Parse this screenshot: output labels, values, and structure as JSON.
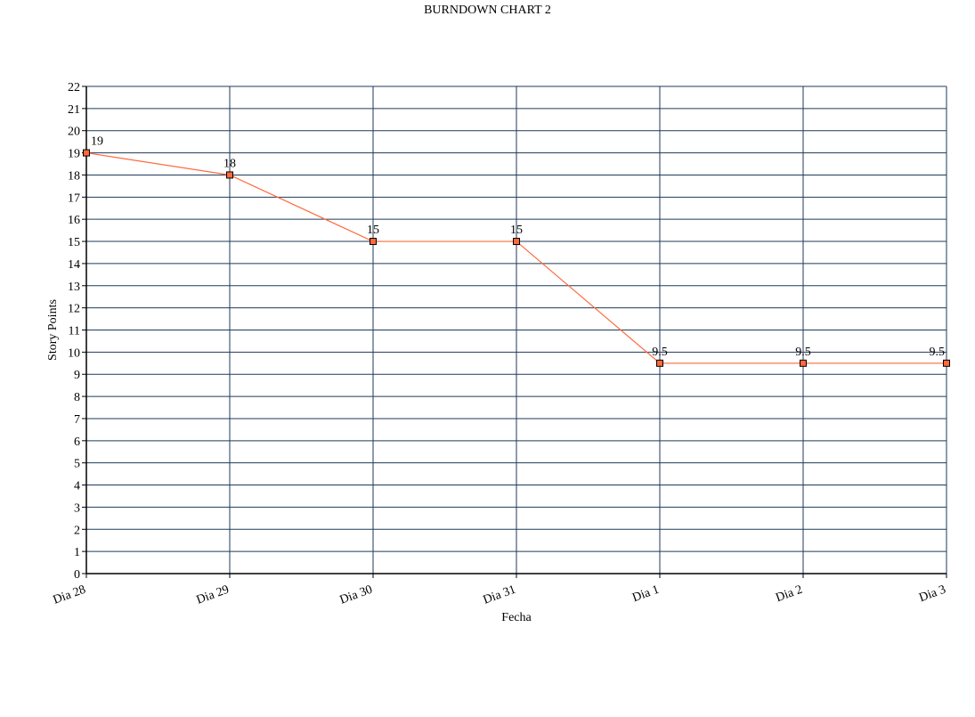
{
  "chart_data": {
    "type": "line",
    "title": "BURNDOWN CHART 2",
    "xlabel": "Fecha",
    "ylabel": "Story Points",
    "categories": [
      "Dia 28",
      "Dia 29",
      "Dia 30",
      "Dia 31",
      "Dia 1",
      "Dia 2",
      "Dia 3"
    ],
    "series": [
      {
        "values": [
          19,
          18,
          15,
          15,
          9.5,
          9.5,
          9.5
        ],
        "labels": [
          "19",
          "18",
          "15",
          "15",
          "9.5",
          "9.5",
          "9.5"
        ],
        "color": "#ff6a3d",
        "marker": "square"
      }
    ],
    "ylim": [
      0,
      22
    ],
    "yticks": [
      0,
      1,
      2,
      3,
      4,
      5,
      6,
      7,
      8,
      9,
      10,
      11,
      12,
      13,
      14,
      15,
      16,
      17,
      18,
      19,
      20,
      21,
      22
    ],
    "grid": true,
    "grid_color": "#1f3a5a",
    "legend": "none"
  }
}
